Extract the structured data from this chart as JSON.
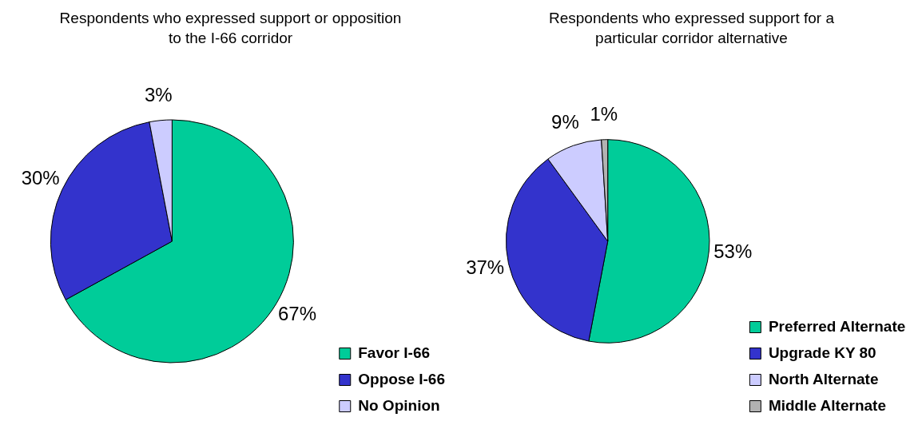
{
  "chart_data": [
    {
      "type": "pie",
      "title": "Respondents who expressed support or opposition to the I-66 corridor",
      "categories": [
        "Favor I-66",
        "Oppose I-66",
        "No Opinion"
      ],
      "values": [
        67,
        30,
        3
      ],
      "colors": [
        "#00cc99",
        "#3333cc",
        "#ccccff"
      ],
      "legend": "bottom right",
      "value_labels": [
        "67%",
        "30%",
        "3%"
      ]
    },
    {
      "type": "pie",
      "title": "Respondents who expressed support for a particular corridor alternative",
      "categories": [
        "Preferred Alternate",
        "Upgrade KY 80",
        "North Alternate",
        "Middle Alternate"
      ],
      "values": [
        53,
        37,
        9,
        1
      ],
      "colors": [
        "#00cc99",
        "#3333cc",
        "#ccccff",
        "#b2b2b2"
      ],
      "legend": "bottom right",
      "value_labels": [
        "53%",
        "37%",
        "9%",
        "1%"
      ]
    }
  ]
}
